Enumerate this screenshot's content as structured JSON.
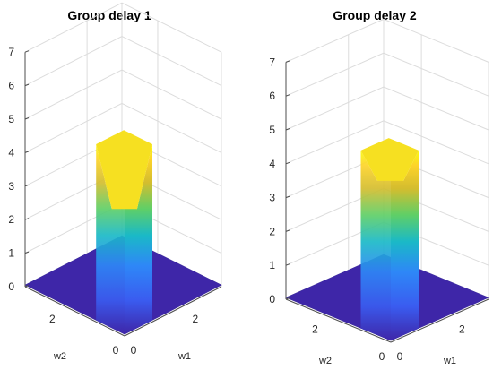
{
  "chart_data": [
    {
      "type": "surface",
      "title": "Group delay 1",
      "xlabel": "w1",
      "ylabel": "w2",
      "zlabel": "",
      "zlim": [
        0,
        7
      ],
      "z_ticks": [
        "0",
        "1",
        "2",
        "3",
        "4",
        "5",
        "6",
        "7"
      ],
      "w1_ticks": [
        "0",
        "2"
      ],
      "w2_ticks": [
        "0",
        "2"
      ],
      "w1_range": [
        0,
        3.14
      ],
      "w2_range": [
        0,
        3.14
      ],
      "grid": true,
      "colormap": [
        "#3e26a8",
        "#2e87f7",
        "#1ab9c7",
        "#5fcf67",
        "#d4bd2e",
        "#fdd32a",
        "#f9fb0e"
      ],
      "floor_level": 0.05,
      "peak": {
        "w1_range": [
          0,
          0.9
        ],
        "w2_range": [
          0,
          0.9
        ],
        "height_near_origin": 4.4,
        "height_far": 5.3,
        "notch_height": 3.6
      }
    },
    {
      "type": "surface",
      "title": "Group delay 2",
      "xlabel": "w1",
      "ylabel": "w2",
      "zlabel": "",
      "zlim": [
        0,
        7
      ],
      "z_ticks": [
        "0",
        "1",
        "2",
        "3",
        "4",
        "5",
        "6",
        "7"
      ],
      "w1_ticks": [
        "0",
        "2"
      ],
      "w2_ticks": [
        "0",
        "2"
      ],
      "w1_range": [
        0,
        3.14
      ],
      "w2_range": [
        0,
        3.14
      ],
      "grid": true,
      "colormap": [
        "#3e26a8",
        "#2e87f7",
        "#1ab9c7",
        "#5fcf67",
        "#d4bd2e",
        "#fdd32a",
        "#f9fb0e"
      ],
      "floor_level": 0.05,
      "peak": {
        "w1_range": [
          0,
          0.9
        ],
        "w2_range": [
          0,
          0.9
        ],
        "height_near_origin": 4.9,
        "height_far": 5.3,
        "notch_height": 4.6
      }
    }
  ]
}
